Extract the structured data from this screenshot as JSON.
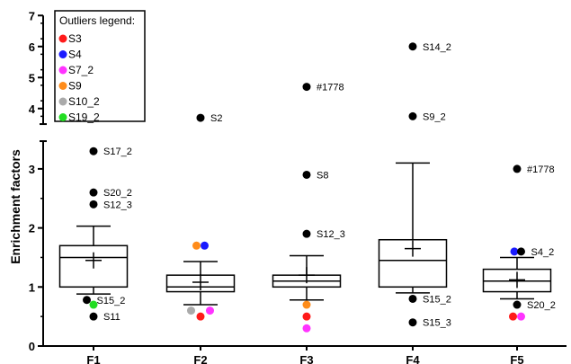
{
  "chart_data": {
    "type": "box",
    "title": "",
    "xlabel": "",
    "ylabel": "Enrichment factors",
    "ylim_lower": [
      0,
      3.5
    ],
    "ylim_upper": [
      3.5,
      7
    ],
    "lower_ticks": [
      "0",
      "1",
      "2",
      "3"
    ],
    "upper_ticks": [
      "4",
      "5",
      "6",
      "7"
    ],
    "categories": [
      "F1",
      "F2",
      "F3",
      "F4",
      "F5"
    ],
    "boxes": [
      {
        "category": "F1",
        "whisker_low": 0.88,
        "q1": 1.0,
        "median": 1.5,
        "q3": 1.7,
        "whisker_high": 2.03,
        "mean": 1.45
      },
      {
        "category": "F2",
        "whisker_low": 0.7,
        "q1": 0.92,
        "median": 1.0,
        "q3": 1.2,
        "whisker_high": 1.43,
        "mean": 1.08
      },
      {
        "category": "F3",
        "whisker_low": 0.78,
        "q1": 1.0,
        "median": 1.1,
        "q3": 1.2,
        "whisker_high": 1.53,
        "mean": 1.2
      },
      {
        "category": "F4",
        "whisker_low": 0.9,
        "q1": 1.0,
        "median": 1.45,
        "q3": 1.8,
        "whisker_high": 3.1,
        "mean": 1.65
      },
      {
        "category": "F5",
        "whisker_low": 0.8,
        "q1": 0.92,
        "median": 1.1,
        "q3": 1.3,
        "whisker_high": 1.5,
        "mean": 1.12
      }
    ],
    "outliers": [
      {
        "category": "F1",
        "value": 3.3,
        "label": "S17_2",
        "color": "#000000",
        "offset": 0
      },
      {
        "category": "F1",
        "value": 2.6,
        "label": "S20_2",
        "color": "#000000",
        "offset": 0
      },
      {
        "category": "F1",
        "value": 2.4,
        "label": "S12_3",
        "color": "#000000",
        "offset": 0
      },
      {
        "category": "F1",
        "value": 0.78,
        "label": "S15_2",
        "color": "#000000",
        "offset": -0.25
      },
      {
        "category": "F1",
        "value": 0.7,
        "label": "",
        "color": "#22dd22",
        "offset": 0
      },
      {
        "category": "F1",
        "value": 0.5,
        "label": "S11",
        "color": "#000000",
        "offset": 0
      },
      {
        "category": "F2",
        "value": 3.7,
        "label": "S2",
        "color": "#000000",
        "offset": 0
      },
      {
        "category": "F2",
        "value": 1.7,
        "label": "",
        "color": "#ff8c1a",
        "offset": -0.15
      },
      {
        "category": "F2",
        "value": 1.7,
        "label": "",
        "color": "#1a1aff",
        "offset": 0.15
      },
      {
        "category": "F2",
        "value": 0.6,
        "label": "",
        "color": "#aaaaaa",
        "offset": -0.35
      },
      {
        "category": "F2",
        "value": 0.5,
        "label": "",
        "color": "#ff1a1a",
        "offset": 0
      },
      {
        "category": "F2",
        "value": 0.6,
        "label": "",
        "color": "#ff33ff",
        "offset": 0.35
      },
      {
        "category": "F3",
        "value": 4.7,
        "label": "#1778",
        "color": "#000000",
        "offset": 0
      },
      {
        "category": "F3",
        "value": 2.9,
        "label": "S8",
        "color": "#000000",
        "offset": 0
      },
      {
        "category": "F3",
        "value": 1.9,
        "label": "S12_3",
        "color": "#000000",
        "offset": 0
      },
      {
        "category": "F3",
        "value": 0.7,
        "label": "",
        "color": "#ff8c1a",
        "offset": 0
      },
      {
        "category": "F3",
        "value": 0.5,
        "label": "",
        "color": "#ff1a1a",
        "offset": 0
      },
      {
        "category": "F3",
        "value": 0.3,
        "label": "",
        "color": "#ff33ff",
        "offset": 0
      },
      {
        "category": "F4",
        "value": 6.0,
        "label": "S14_2",
        "color": "#000000",
        "offset": 0
      },
      {
        "category": "F4",
        "value": 3.75,
        "label": "S9_2",
        "color": "#000000",
        "offset": 0
      },
      {
        "category": "F4",
        "value": 0.8,
        "label": "S15_2",
        "color": "#000000",
        "offset": 0
      },
      {
        "category": "F4",
        "value": 0.4,
        "label": "S15_3",
        "color": "#000000",
        "offset": 0
      },
      {
        "category": "F5",
        "value": 3.0,
        "label": "#1778",
        "color": "#000000",
        "offset": 0
      },
      {
        "category": "F5",
        "value": 1.6,
        "label": "",
        "color": "#1a1aff",
        "offset": -0.1
      },
      {
        "category": "F5",
        "value": 1.6,
        "label": "S4_2",
        "color": "#000000",
        "offset": 0.15
      },
      {
        "category": "F5",
        "value": 0.7,
        "label": "S20_2",
        "color": "#000000",
        "offset": 0
      },
      {
        "category": "F5",
        "value": 0.5,
        "label": "",
        "color": "#ff1a1a",
        "offset": -0.15
      },
      {
        "category": "F5",
        "value": 0.5,
        "label": "",
        "color": "#ff33ff",
        "offset": 0.15
      }
    ],
    "legend": {
      "title": "Outliers legend:",
      "placement": "top-left",
      "items": [
        {
          "label": "S3",
          "color": "#ff1a1a"
        },
        {
          "label": "S4",
          "color": "#1a1aff"
        },
        {
          "label": "S7_2",
          "color": "#ff33ff"
        },
        {
          "label": "S9",
          "color": "#ff8c1a"
        },
        {
          "label": "S10_2",
          "color": "#aaaaaa"
        },
        {
          "label": "S19_2",
          "color": "#22dd22"
        }
      ]
    }
  }
}
